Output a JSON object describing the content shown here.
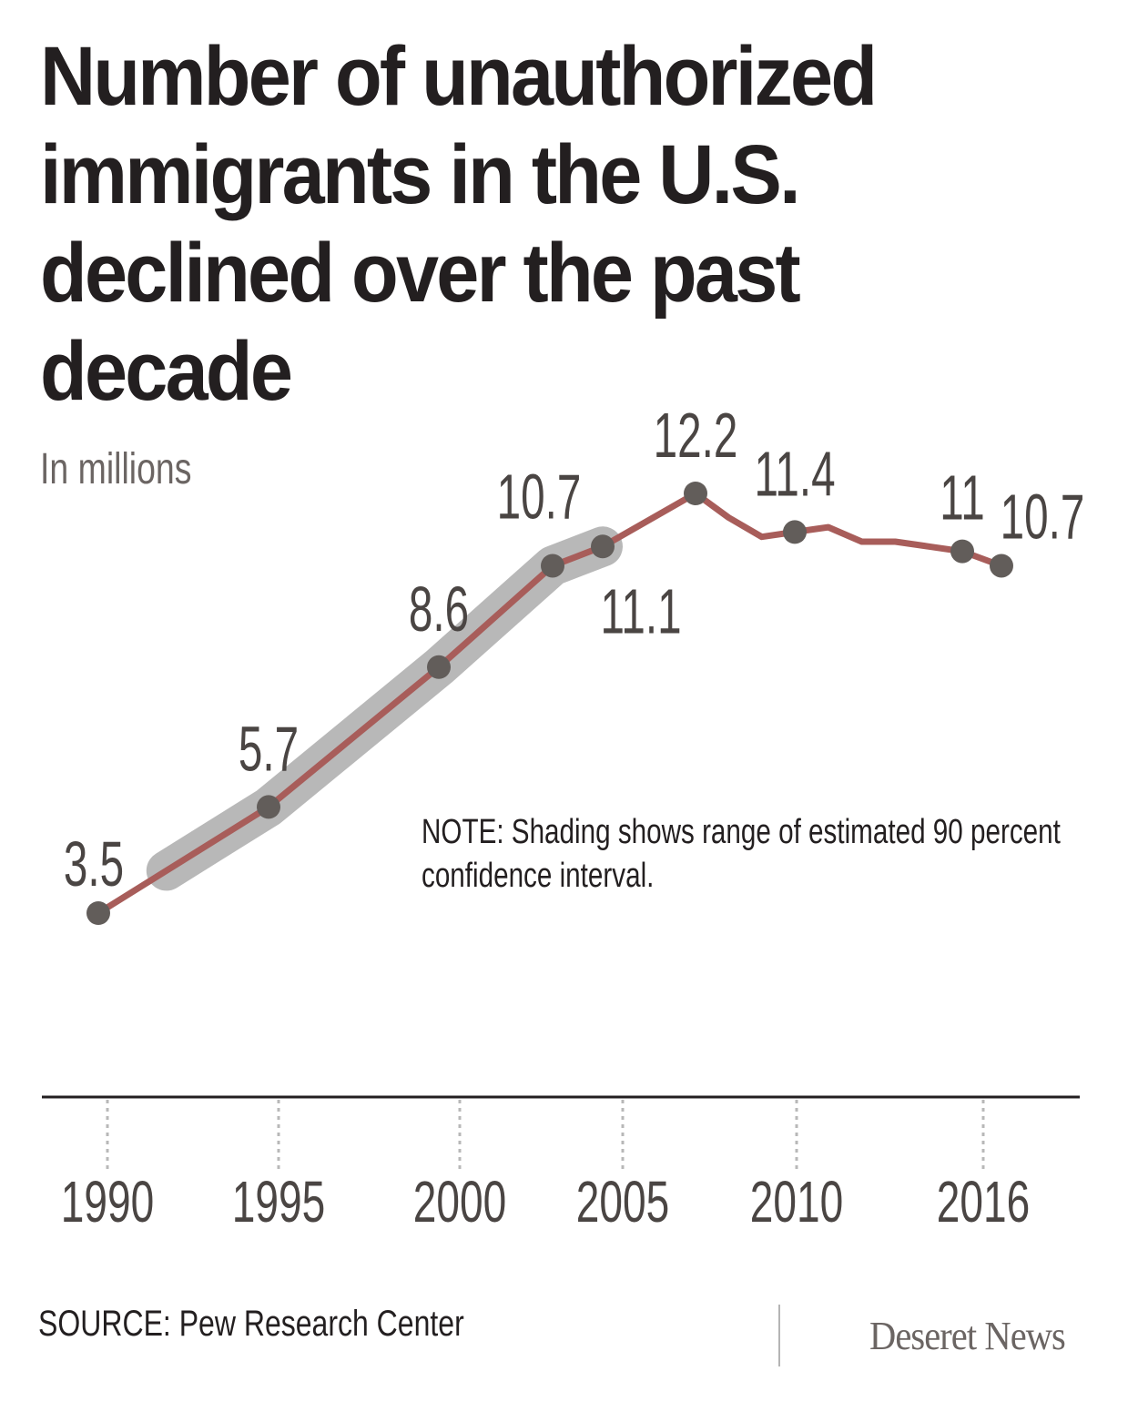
{
  "chart_data": {
    "type": "line",
    "title": "Number of unauthorized immigrants in the U.S. declined over the past decade",
    "subtitle": "In millions",
    "xlabel": "",
    "ylabel": "In millions",
    "x_ticks": [
      1990,
      1995,
      2000,
      2005,
      2010,
      2016
    ],
    "xlim": [
      1990,
      2016
    ],
    "ylim": [
      0,
      13
    ],
    "grid": false,
    "series": [
      {
        "name": "Unauthorized immigrants",
        "color": "#a85d5a",
        "points": [
          {
            "x": 1990,
            "y": 3.5
          },
          {
            "x": 1995,
            "y": 5.7
          },
          {
            "x": 2000,
            "y": 8.6
          },
          {
            "x": 2003,
            "y": 10.7
          },
          {
            "x": 2005,
            "y": 11.1
          },
          {
            "x": 2007,
            "y": 12.2
          },
          {
            "x": 2008,
            "y": 11.7
          },
          {
            "x": 2009,
            "y": 11.3
          },
          {
            "x": 2010,
            "y": 11.4
          },
          {
            "x": 2011,
            "y": 11.5
          },
          {
            "x": 2012,
            "y": 11.2
          },
          {
            "x": 2013,
            "y": 11.2
          },
          {
            "x": 2014,
            "y": 11.1
          },
          {
            "x": 2015,
            "y": 11.0
          },
          {
            "x": 2016,
            "y": 10.7
          }
        ]
      }
    ],
    "labeled_points": [
      {
        "x": 1990,
        "label": "3.5",
        "pos": "above"
      },
      {
        "x": 1995,
        "label": "5.7",
        "pos": "above"
      },
      {
        "x": 2000,
        "label": "8.6",
        "pos": "above"
      },
      {
        "x": 2003,
        "label": "10.7",
        "pos": "above"
      },
      {
        "x": 2005,
        "label": "11.1",
        "pos": "below"
      },
      {
        "x": 2007,
        "label": "12.2",
        "pos": "above"
      },
      {
        "x": 2010,
        "label": "11.4",
        "pos": "above"
      },
      {
        "x": 2015,
        "label": "11",
        "pos": "above"
      },
      {
        "x": 2016,
        "label": "10.7",
        "pos": "right"
      }
    ],
    "confidence_band": {
      "label": "90 percent confidence interval",
      "x_range": [
        1992,
        2005
      ]
    },
    "annotations": [
      "NOTE: Shading shows range of estimated 90 percent confidence interval."
    ]
  },
  "header": {
    "title": "Number of unauthorized immigrants in the U.S. declined over the past decade",
    "subtitle": "In millions"
  },
  "note": "NOTE: Shading shows range of estimated 90 percent confidence interval.",
  "footer": {
    "source": "SOURCE: Pew Research Center",
    "brand": "Deseret News"
  }
}
